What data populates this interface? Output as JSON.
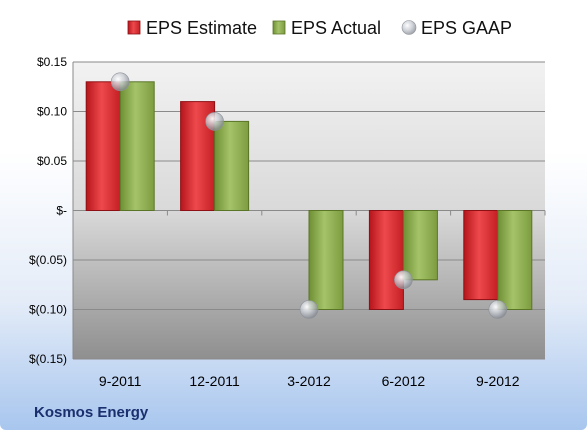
{
  "chart_data": {
    "type": "bar",
    "categories": [
      "9-2011",
      "12-2011",
      "3-2012",
      "6-2012",
      "9-2012"
    ],
    "series": [
      {
        "name": "EPS Estimate",
        "values": [
          0.13,
          0.11,
          null,
          -0.1,
          -0.09
        ],
        "color": "#d42a2e"
      },
      {
        "name": "EPS Actual",
        "values": [
          0.13,
          0.09,
          -0.1,
          -0.07,
          -0.1
        ],
        "color": "#8cab4e"
      },
      {
        "name": "EPS GAAP",
        "values": [
          0.13,
          0.09,
          -0.1,
          -0.07,
          -0.1
        ],
        "color": "#b9bec6",
        "marker": "sphere"
      }
    ],
    "yticks": [
      0.15,
      0.1,
      0.05,
      0,
      -0.05,
      -0.1,
      -0.15
    ],
    "ytick_labels": [
      "$0.15",
      "$0.10",
      "$0.05",
      "$-",
      "$(0.05)",
      "$(0.10)",
      "$(0.15)"
    ],
    "ylim": [
      -0.15,
      0.15
    ],
    "grid": true,
    "legend_position": "top"
  },
  "company_name": "Kosmos Energy"
}
